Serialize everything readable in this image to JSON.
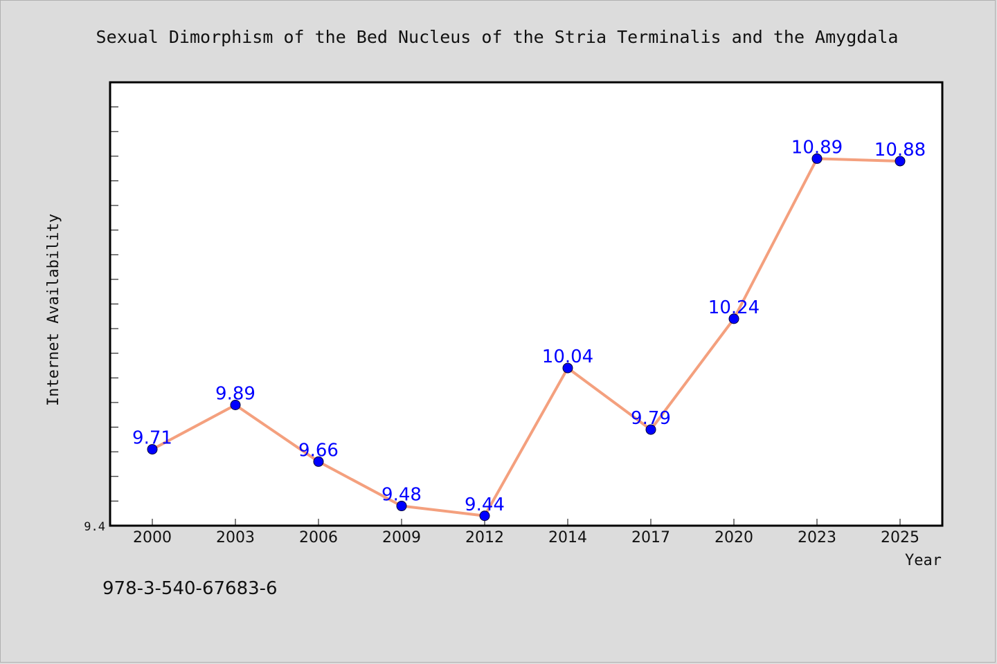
{
  "chart_data": {
    "type": "line",
    "title": "Sexual Dimorphism of the Bed Nucleus of the Stria Terminalis and the Amygdala",
    "xlabel": "Year",
    "ylabel": "Internet Availability",
    "categories": [
      "2000",
      "2003",
      "2006",
      "2009",
      "2012",
      "2014",
      "2017",
      "2020",
      "2023",
      "2025"
    ],
    "series": [
      {
        "values": [
          9.71,
          9.89,
          9.66,
          9.48,
          9.44,
          10.04,
          9.79,
          10.24,
          10.89,
          10.88
        ],
        "labels": [
          "9.71",
          "9.89",
          "9.66",
          "9.48",
          "9.44",
          "10.04",
          "9.79",
          "10.24",
          "10.89",
          "10.88"
        ],
        "line_color": "#f4a07e",
        "marker_color": "#0000ff",
        "label_color": "#0000ff"
      }
    ],
    "ylim": [
      9.4,
      11.2
    ],
    "y_tick_label": "9.4",
    "grid": false,
    "legend": "none"
  },
  "footer": {
    "code": "978-3-540-67683-6"
  },
  "colors": {
    "background": "#dcdcdc",
    "plot_background": "#ffffff"
  }
}
